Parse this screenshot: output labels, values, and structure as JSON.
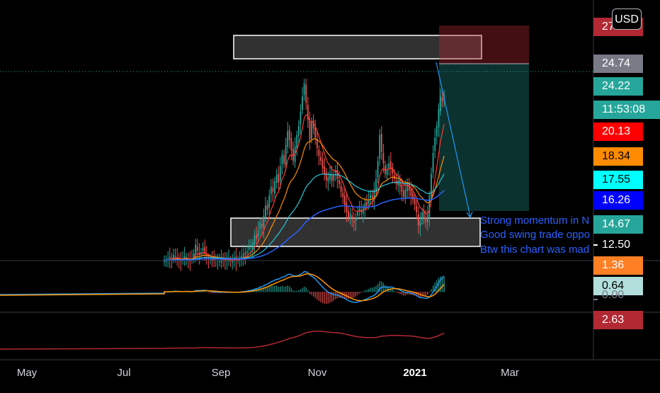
{
  "currency": "USD",
  "price_labels": [
    {
      "text": "27",
      "bg": "#b22833",
      "fg": "#ffffff"
    },
    {
      "text": "24.74",
      "bg": "#787b86",
      "fg": "#ffffff"
    },
    {
      "text": "24.22",
      "bg": "#26a69a",
      "fg": "#ffffff"
    },
    {
      "text": "11:53:08",
      "bg": "#26a69a",
      "fg": "#ffffff"
    },
    {
      "text": "20.13",
      "bg": "#ff0000",
      "fg": "#ffffff"
    },
    {
      "text": "18.34",
      "bg": "#ff8c00",
      "fg": "#000000"
    },
    {
      "text": "17.55",
      "bg": "#00ffff",
      "fg": "#000000"
    },
    {
      "text": "16.26",
      "bg": "#0000ff",
      "fg": "#ffffff"
    },
    {
      "text": "14.67",
      "bg": "#26a69a",
      "fg": "#ffffff"
    },
    {
      "text": "12.50",
      "bg": "transparent",
      "fg": "#ffffff"
    },
    {
      "text": "1.36",
      "bg": "#ff7f24",
      "fg": "#ffffff"
    },
    {
      "text": "0.64",
      "bg": "#b2dfdb",
      "fg": "#000000"
    },
    {
      "text": "0.00",
      "bg": "transparent",
      "fg": "#787b86"
    },
    {
      "text": "2.63",
      "bg": "#b22833",
      "fg": "#ffffff"
    }
  ],
  "annotations": [
    "Strong momentum in N",
    "Good swing trade oppo",
    "Btw this chart was mad"
  ],
  "colors": {
    "up": "#26a69a",
    "down": "#ef5350",
    "ema_red": "#ff3b30",
    "ema_orange": "#ff8c00",
    "ema_cyan": "#26c6da",
    "ema_blue": "#2962ff",
    "macd": "#2196f3",
    "signal": "#ff9800",
    "rsi": "#b22833",
    "last_price": "#26a69a"
  },
  "chart_data": {
    "type": "candlestick",
    "x_ticks": [
      "May",
      "Jul",
      "Sep",
      "Nov",
      "2021",
      "Mar"
    ],
    "x_range": [
      "Apr",
      "Apr"
    ],
    "ylim": [
      12,
      27.5
    ],
    "last_price": 24.74,
    "zones": [
      {
        "name": "resistance",
        "low": 25.3,
        "high": 26.8
      },
      {
        "name": "support",
        "low": 12.55,
        "high": 14.4
      }
    ],
    "short_position": {
      "entry": 25.6,
      "stop": 27.3,
      "target": 15.5
    },
    "closes": [
      11.9,
      11.8,
      12.0,
      11.9,
      12.1,
      12.3,
      12.2,
      12.0,
      11.9,
      11.8,
      12.0,
      12.2,
      12.1,
      11.9,
      11.8,
      12.0,
      12.4,
      13.1,
      12.6,
      12.3,
      12.5,
      12.8,
      12.4,
      12.2,
      12.0,
      11.9,
      11.8,
      11.9,
      12.0,
      11.9,
      11.8,
      12.0,
      11.9,
      11.8,
      11.9,
      12.0,
      11.8,
      11.9,
      12.0,
      11.8,
      11.9,
      12.1,
      12.2,
      12.4,
      12.3,
      12.6,
      12.9,
      12.8,
      13.2,
      13.8,
      13.5,
      14.2,
      14.8,
      14.5,
      15.3,
      16.1,
      15.8,
      16.9,
      17.6,
      17.2,
      18.0,
      18.5,
      17.9,
      19.2,
      20.1,
      19.4,
      20.8,
      21.9,
      21.2,
      20.4,
      19.6,
      20.7,
      21.6,
      22.3,
      23.4,
      24.6,
      25.6,
      24.1,
      22.8,
      21.2,
      22.6,
      22.1,
      21.4,
      20.6,
      20.0,
      19.6,
      19.0,
      18.6,
      18.1,
      18.3,
      18.6,
      18.0,
      18.5,
      18.8,
      18.2,
      17.8,
      17.2,
      16.8,
      16.2,
      15.6,
      15.2,
      15.5,
      15.0,
      14.8,
      15.2,
      15.6,
      15.9,
      15.6,
      15.9,
      16.3,
      16.1,
      16.6,
      17.0,
      16.7,
      17.4,
      18.2,
      19.6,
      21.6,
      20.3,
      19.4,
      18.6,
      18.9,
      19.4,
      19.0,
      18.6,
      18.2,
      17.8,
      18.1,
      17.6,
      17.2,
      16.8,
      17.4,
      17.9,
      17.3,
      16.9,
      16.6,
      16.2,
      15.6,
      14.6,
      14.9,
      15.6,
      15.1,
      14.9,
      15.4,
      16.9,
      18.6,
      20.2,
      21.4,
      22.3,
      23.6,
      24.6,
      24.2,
      24.74
    ]
  }
}
